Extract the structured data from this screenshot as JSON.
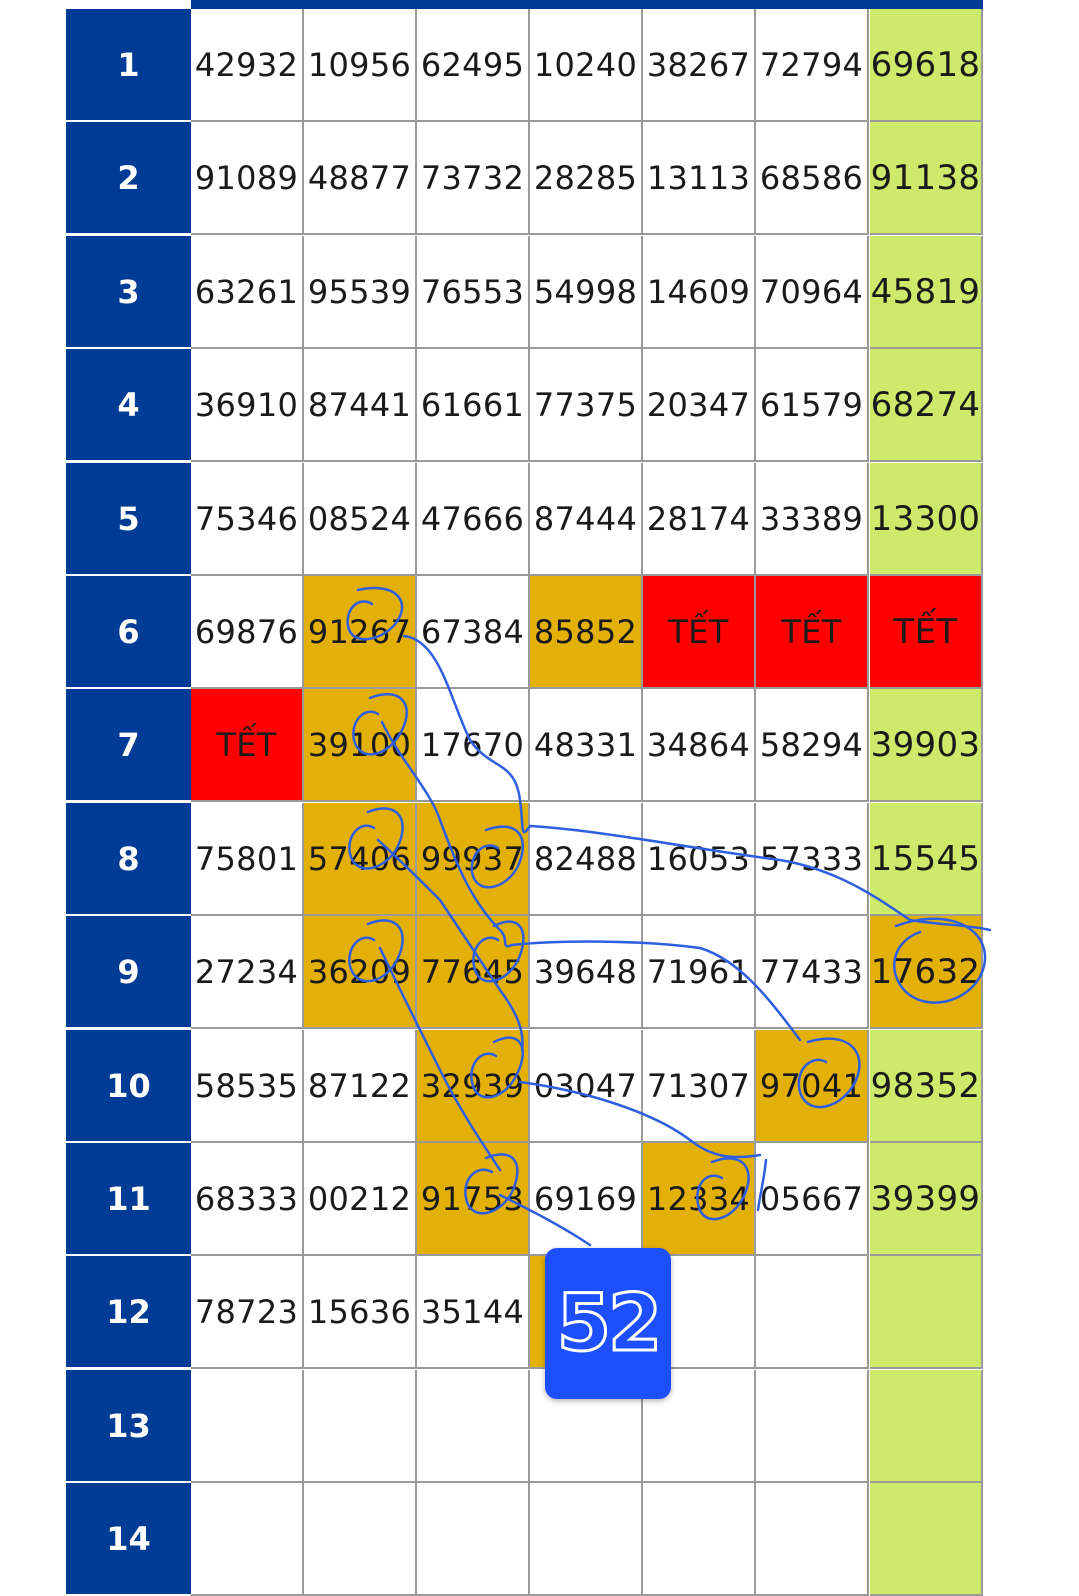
{
  "table": {
    "rows": [
      {
        "label": "1",
        "cells": [
          "42932",
          "10956",
          "62495",
          "10240",
          "38267",
          "72794",
          "69618"
        ],
        "hl": [
          "",
          "",
          "",
          "",
          "",
          "",
          "green"
        ]
      },
      {
        "label": "2",
        "cells": [
          "91089",
          "48877",
          "73732",
          "28285",
          "13113",
          "68586",
          "91138"
        ],
        "hl": [
          "",
          "",
          "",
          "",
          "",
          "",
          "green"
        ]
      },
      {
        "label": "3",
        "cells": [
          "63261",
          "95539",
          "76553",
          "54998",
          "14609",
          "70964",
          "45819"
        ],
        "hl": [
          "",
          "",
          "",
          "",
          "",
          "",
          "green"
        ]
      },
      {
        "label": "4",
        "cells": [
          "36910",
          "87441",
          "61661",
          "77375",
          "20347",
          "61579",
          "68274"
        ],
        "hl": [
          "",
          "",
          "",
          "",
          "",
          "",
          "green"
        ]
      },
      {
        "label": "5",
        "cells": [
          "75346",
          "08524",
          "47666",
          "87444",
          "28174",
          "33389",
          "13300"
        ],
        "hl": [
          "",
          "",
          "",
          "",
          "",
          "",
          "green"
        ]
      },
      {
        "label": "6",
        "cells": [
          "69876",
          "91267",
          "67384",
          "85852",
          "TẾT",
          "TẾT",
          "TẾT"
        ],
        "hl": [
          "",
          "gold",
          "",
          "gold",
          "red",
          "red",
          "red"
        ]
      },
      {
        "label": "7",
        "cells": [
          "TẾT",
          "39100",
          "17670",
          "48331",
          "34864",
          "58294",
          "39903"
        ],
        "hl": [
          "red",
          "gold",
          "",
          "",
          "",
          "",
          "green"
        ]
      },
      {
        "label": "8",
        "cells": [
          "75801",
          "57406",
          "99937",
          "82488",
          "16053",
          "57333",
          "15545"
        ],
        "hl": [
          "",
          "gold",
          "gold",
          "",
          "",
          "",
          "green"
        ]
      },
      {
        "label": "9",
        "cells": [
          "27234",
          "36209",
          "77645",
          "39648",
          "71961",
          "77433",
          "17632"
        ],
        "hl": [
          "",
          "gold",
          "gold",
          "",
          "",
          "",
          "gold"
        ]
      },
      {
        "label": "10",
        "cells": [
          "58535",
          "87122",
          "32939",
          "03047",
          "71307",
          "97041",
          "98352"
        ],
        "hl": [
          "",
          "",
          "gold",
          "",
          "",
          "gold",
          "green"
        ]
      },
      {
        "label": "11",
        "cells": [
          "68333",
          "00212",
          "91753",
          "69169",
          "12334",
          "05667",
          "39399"
        ],
        "hl": [
          "",
          "",
          "gold",
          "",
          "gold",
          "",
          "green"
        ]
      },
      {
        "label": "12",
        "cells": [
          "78723",
          "15636",
          "35144",
          "",
          "",
          "",
          ""
        ],
        "hl": [
          "",
          "",
          "",
          "gold",
          "",
          "",
          "green"
        ]
      },
      {
        "label": "13",
        "cells": [
          "",
          "",
          "",
          "",
          "",
          "",
          ""
        ],
        "hl": [
          "",
          "",
          "",
          "",
          "",
          "",
          "green"
        ]
      },
      {
        "label": "14",
        "cells": [
          "",
          "",
          "",
          "",
          "",
          "",
          ""
        ],
        "hl": [
          "",
          "",
          "",
          "",
          "",
          "",
          "green"
        ]
      }
    ]
  },
  "badge": {
    "text": "52"
  },
  "colors": {
    "header_blue": "#003b96",
    "green": "#cdea6a",
    "gold": "#e2b007",
    "red": "#ff0000",
    "ink": "#2f5fe0",
    "badge_blue": "#1e4fff"
  }
}
